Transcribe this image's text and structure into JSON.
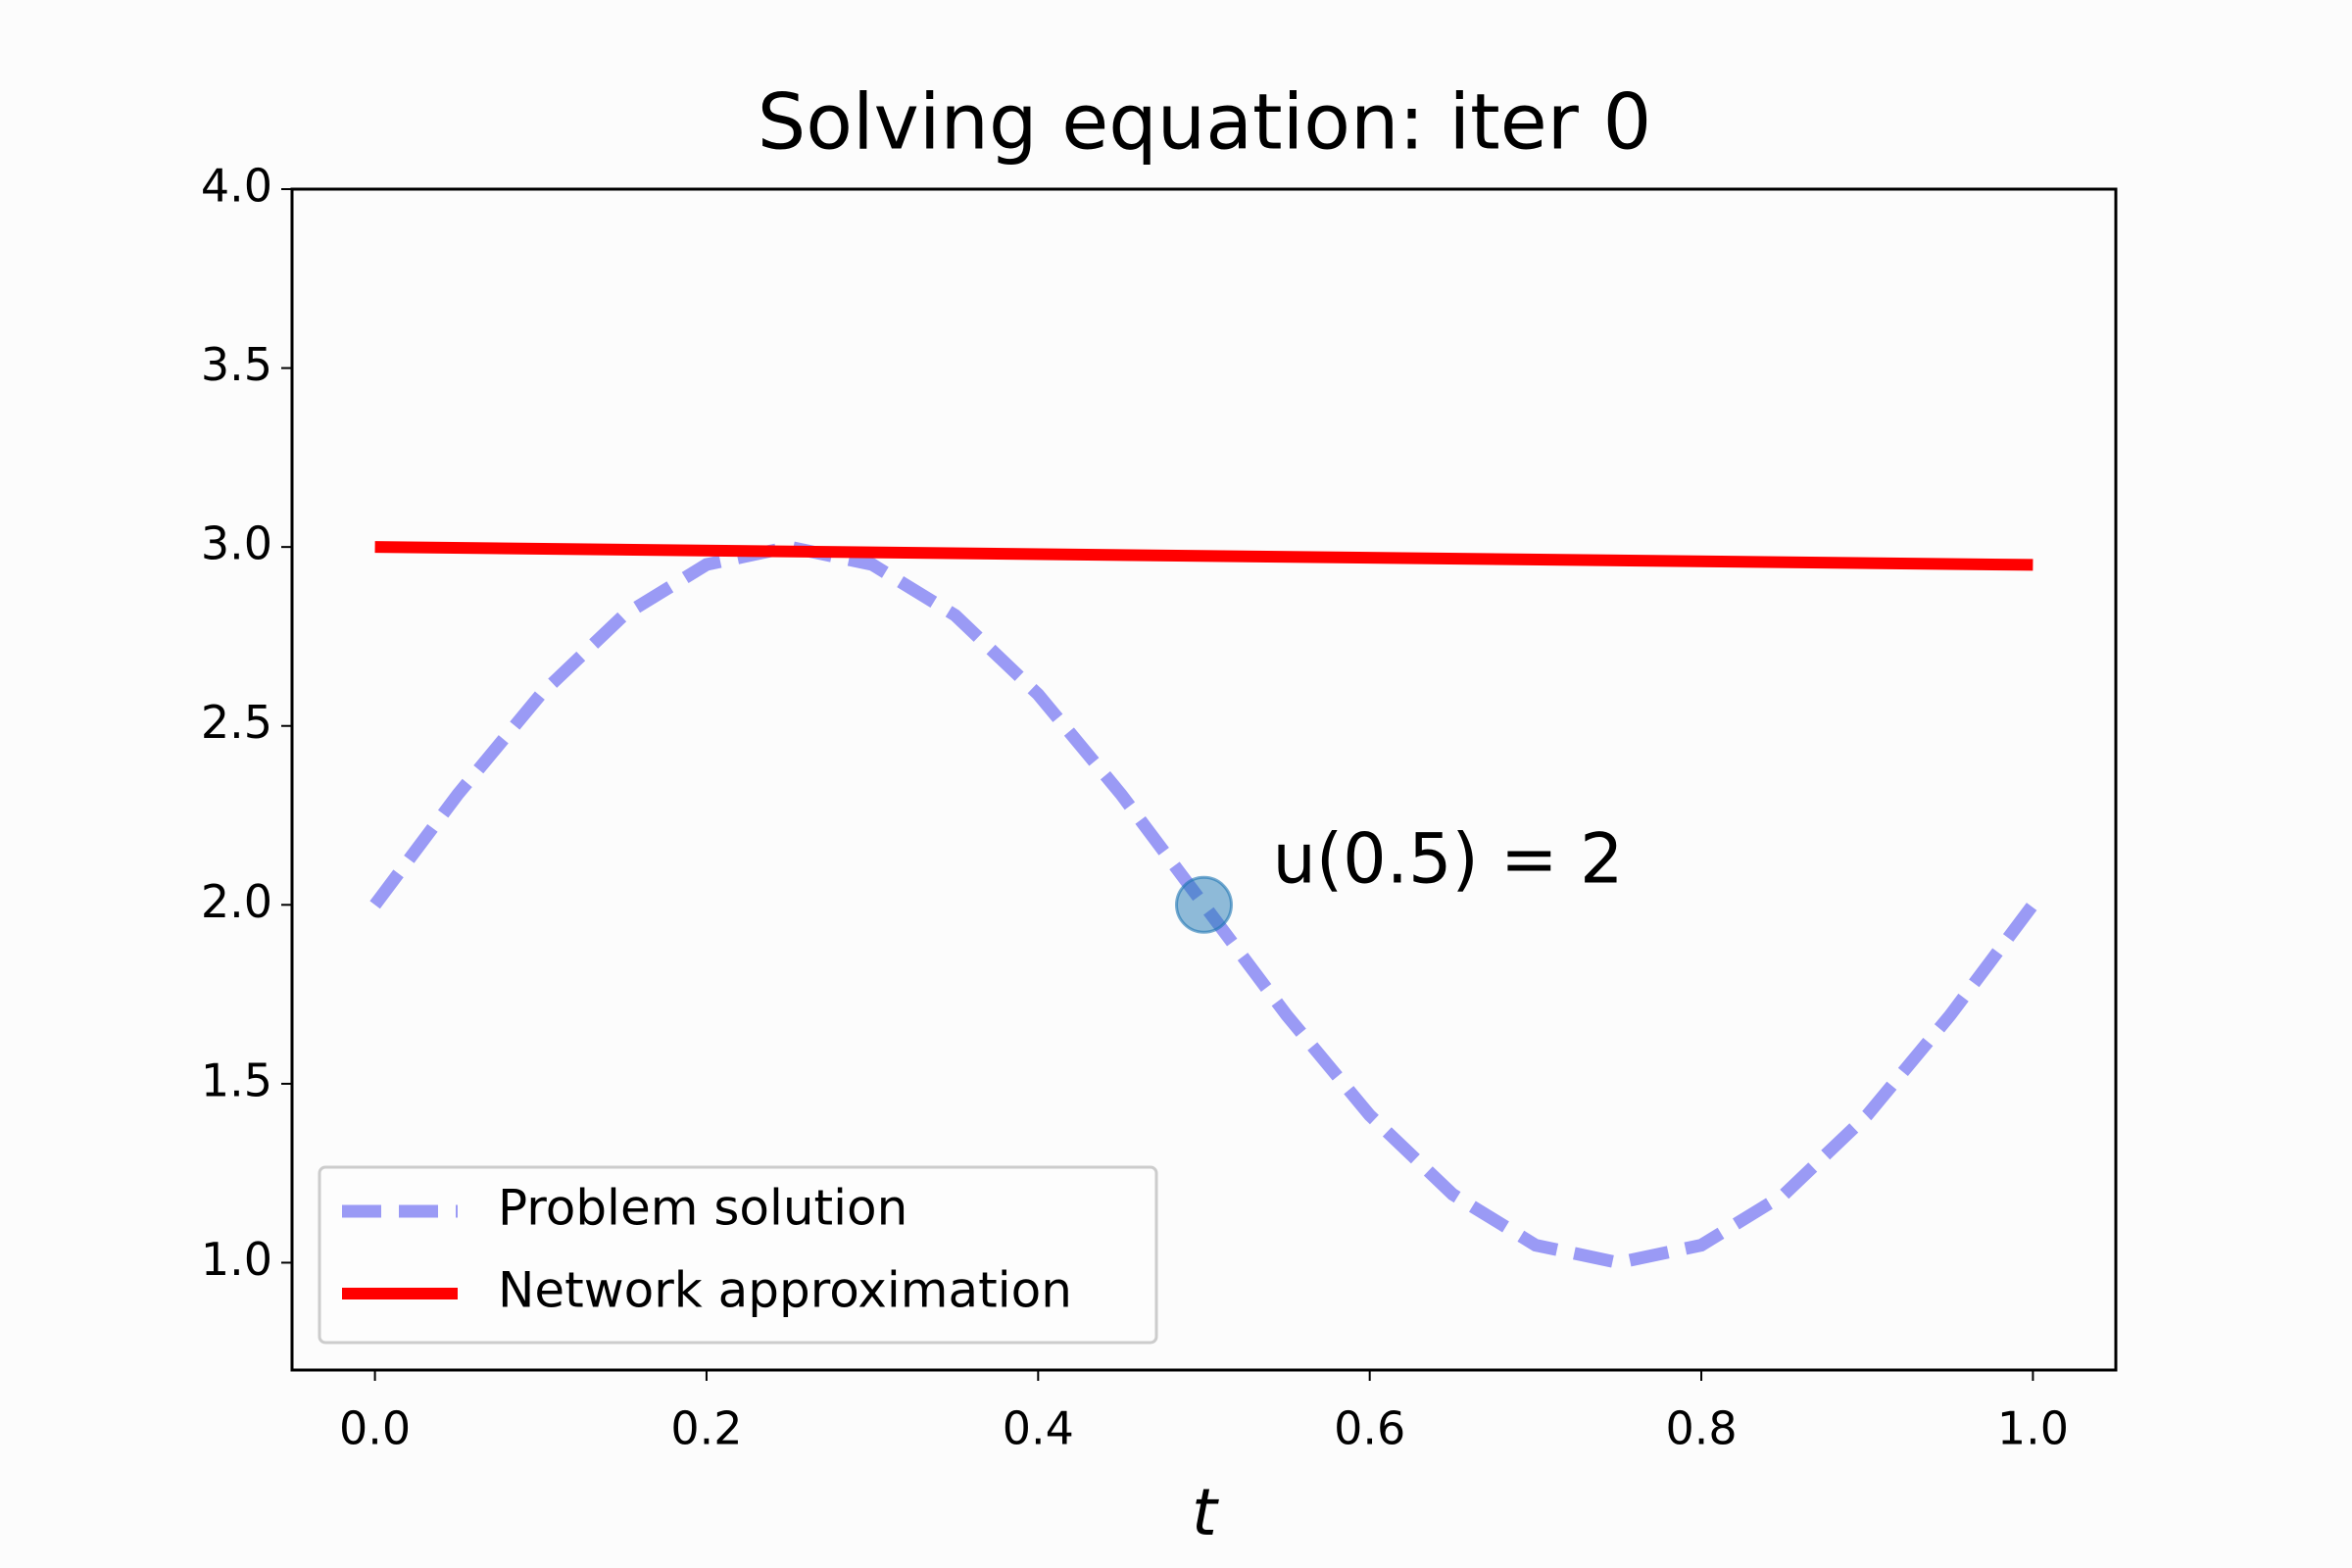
{
  "chart_data": {
    "type": "line",
    "title": "Solving equation: iter 0",
    "x_label": "t",
    "xlim": [
      -0.05,
      1.05
    ],
    "ylim": [
      0.7,
      4.0
    ],
    "xticks": [
      {
        "value": 0,
        "label": "0.0"
      },
      0.2,
      0.4,
      0.6,
      0.8,
      {
        "value": 1,
        "label": "1.0"
      }
    ],
    "yticks": [
      {
        "value": 1,
        "label": "1.0"
      },
      1.5,
      {
        "value": 2,
        "label": "2.0"
      },
      2.5,
      {
        "value": 3,
        "label": "3.0"
      },
      3.5,
      {
        "value": 4,
        "label": "4.0"
      }
    ],
    "legend_loc": "lower left",
    "series": [
      {
        "name": "Problem solution",
        "color": "#9a9af5",
        "dashed": true,
        "x": [
          0,
          0.05,
          0.1,
          0.15,
          0.2,
          0.25,
          0.3,
          0.35,
          0.4,
          0.45,
          0.5,
          0.55,
          0.6,
          0.65,
          0.7,
          0.75,
          0.8,
          0.85,
          0.9,
          0.95,
          1
        ],
        "values": [
          2,
          2.309,
          2.588,
          2.809,
          2.951,
          3,
          2.951,
          2.809,
          2.588,
          2.309,
          2,
          1.691,
          1.412,
          1.191,
          1.049,
          1,
          1.049,
          1.191,
          1.412,
          1.691,
          2
        ]
      },
      {
        "name": "Network approximation",
        "color": "#ff0000",
        "dashed": false,
        "x": [
          0,
          1
        ],
        "values": [
          3.0,
          2.95
        ]
      }
    ],
    "annotation": {
      "text": "u(0.5) = 2",
      "x": 0.5,
      "y": 2,
      "color": "#1f77b4"
    }
  }
}
